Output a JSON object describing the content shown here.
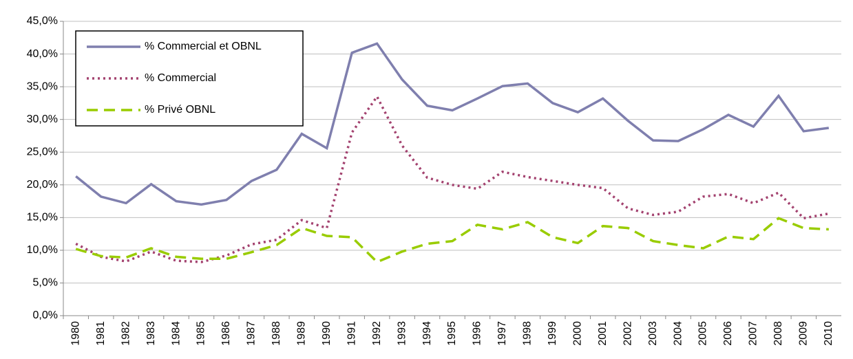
{
  "chart_data": {
    "type": "line",
    "categories": [
      "1980",
      "1981",
      "1982",
      "1983",
      "1984",
      "1985",
      "1986",
      "1987",
      "1988",
      "1989",
      "1990",
      "1991",
      "1992",
      "1993",
      "1994",
      "1995",
      "1996",
      "1997",
      "1998",
      "1999",
      "2000",
      "2001",
      "2002",
      "2003",
      "2004",
      "2005",
      "2006",
      "2007",
      "2008",
      "2009",
      "2010"
    ],
    "series": [
      {
        "name": "% Commercial et OBNL",
        "color": "#7f7fae",
        "dash": "solid",
        "values": [
          21.3,
          18.2,
          17.2,
          20.1,
          17.5,
          17.0,
          17.7,
          20.6,
          22.3,
          27.8,
          25.6,
          40.2,
          41.6,
          36.1,
          32.1,
          31.4,
          33.2,
          35.1,
          35.5,
          32.5,
          31.1,
          33.2,
          29.8,
          26.8,
          26.7,
          28.5,
          30.7,
          28.9,
          33.6,
          28.2,
          28.7
        ]
      },
      {
        "name": "% Commercial",
        "color": "#a3426f",
        "dash": "dot",
        "values": [
          11.0,
          9.0,
          8.3,
          9.8,
          8.4,
          8.2,
          9.2,
          10.9,
          11.6,
          14.6,
          13.4,
          28.0,
          33.5,
          26.0,
          21.1,
          20.0,
          19.4,
          22.0,
          21.2,
          20.6,
          20.0,
          19.5,
          16.4,
          15.4,
          15.9,
          18.2,
          18.6,
          17.2,
          18.8,
          14.9,
          15.6
        ]
      },
      {
        "name": "% Privé OBNL",
        "color": "#99cc00",
        "dash": "dash",
        "values": [
          10.2,
          9.1,
          8.9,
          10.3,
          9.0,
          8.7,
          8.7,
          9.7,
          10.8,
          13.4,
          12.2,
          12.0,
          8.2,
          9.8,
          11.0,
          11.4,
          13.9,
          13.2,
          14.3,
          12.0,
          11.1,
          13.7,
          13.4,
          11.4,
          10.8,
          10.3,
          12.1,
          11.7,
          14.9,
          13.4,
          13.2
        ]
      }
    ],
    "ylim": [
      0,
      45
    ],
    "yticks": [
      {
        "value": 0,
        "label": "0,0%"
      },
      {
        "value": 5,
        "label": "5,0%"
      },
      {
        "value": 10,
        "label": "10,0%"
      },
      {
        "value": 15,
        "label": "15,0%"
      },
      {
        "value": 20,
        "label": "20,0%"
      },
      {
        "value": 25,
        "label": "25,0%"
      },
      {
        "value": 30,
        "label": "30,0%"
      },
      {
        "value": 35,
        "label": "35,0%"
      },
      {
        "value": 40,
        "label": "40,0%"
      },
      {
        "value": 45,
        "label": "45,0%"
      }
    ],
    "grid": true,
    "legend": "upper-left"
  }
}
